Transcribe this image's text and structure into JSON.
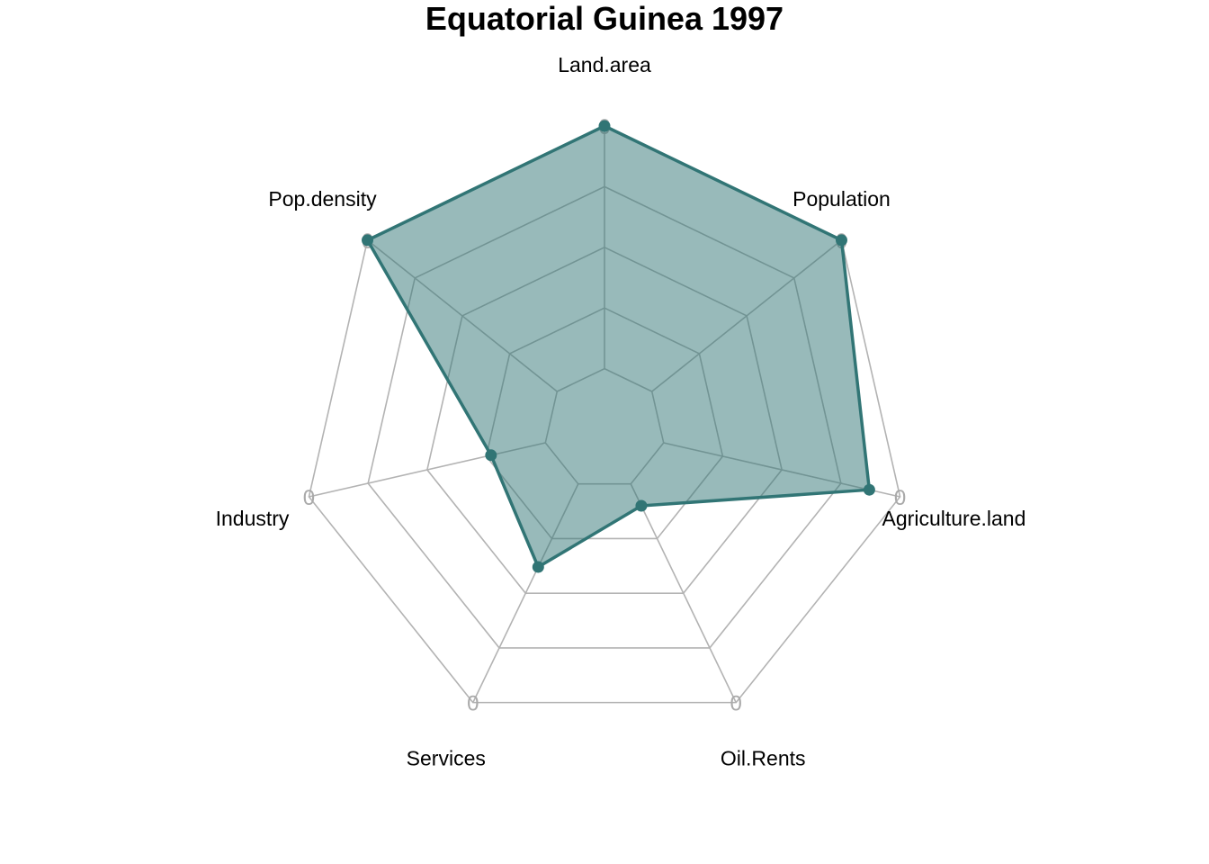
{
  "chart_data": {
    "type": "radar",
    "title": "Equatorial Guinea 1997",
    "axes": [
      "Land.area",
      "Population",
      "Agriculture.land",
      "Oil.Rents",
      "Services",
      "Industry",
      "Pop.density"
    ],
    "axis_tick_label": "0",
    "range": [
      0,
      1
    ],
    "grid_levels": 5,
    "grid": true,
    "legend": "none",
    "series": [
      {
        "values": [
          1.0,
          1.0,
          0.87,
          0.1,
          0.38,
          0.23,
          1.0
        ]
      }
    ],
    "colors": {
      "line": "#317575",
      "fill": "#317575",
      "fill_opacity": 0.5,
      "grid": "#b3b3b3"
    }
  }
}
